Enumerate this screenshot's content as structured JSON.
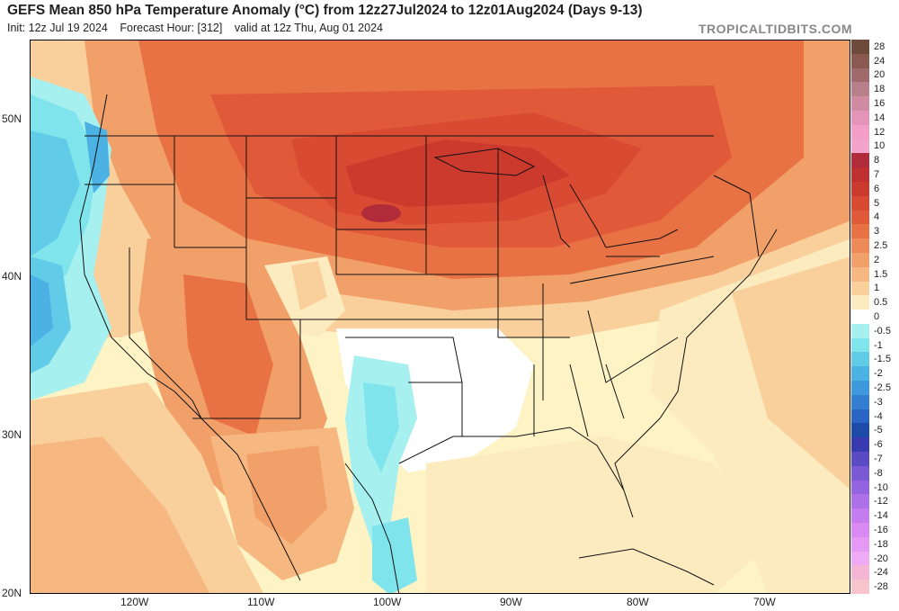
{
  "header": {
    "title": "GEFS Mean 850 hPa Temperature Anomaly (°C) from 12z27Jul2024 to 12z01Aug2024 (Days 9-13)",
    "init": "Init: 12z Jul 19 2024",
    "forecast_hour": "Forecast Hour: [312]",
    "valid": "valid at 12z Thu, Aug 01 2024",
    "brand": "TROPICALTIDBITS.COM"
  },
  "axes": {
    "lat_labels": [
      "50N",
      "40N",
      "30N",
      "20N"
    ],
    "lon_labels": [
      "120W",
      "110W",
      "100W",
      "90W",
      "80W",
      "70W"
    ]
  },
  "colorbar": {
    "levels": [
      {
        "label": "28",
        "color": "#6e4a3a"
      },
      {
        "label": "24",
        "color": "#8a5a52"
      },
      {
        "label": "20",
        "color": "#a06a6a"
      },
      {
        "label": "18",
        "color": "#b8808a"
      },
      {
        "label": "16",
        "color": "#d08aa2"
      },
      {
        "label": "14",
        "color": "#e494b8"
      },
      {
        "label": "12",
        "color": "#f29ec8"
      },
      {
        "label": "10",
        "color": "#f2a4cc"
      },
      {
        "label": "8",
        "color": "#b02c3a"
      },
      {
        "label": "7",
        "color": "#c03030"
      },
      {
        "label": "6",
        "color": "#cc3a2e"
      },
      {
        "label": "5",
        "color": "#d84a32"
      },
      {
        "label": "4",
        "color": "#e05a3a"
      },
      {
        "label": "3",
        "color": "#e87244"
      },
      {
        "label": "2.5",
        "color": "#ee8a58"
      },
      {
        "label": "2",
        "color": "#f2a06a"
      },
      {
        "label": "1.5",
        "color": "#f6b880"
      },
      {
        "label": "1",
        "color": "#f9d09c"
      },
      {
        "label": "0.5",
        "color": "#fcebbe"
      },
      {
        "label": "0",
        "color": "#ffffff"
      },
      {
        "label": "-0.5",
        "color": "#a6f0f0"
      },
      {
        "label": "-1",
        "color": "#80e4ec"
      },
      {
        "label": "-1.5",
        "color": "#62cce8"
      },
      {
        "label": "-2",
        "color": "#4cb2e4"
      },
      {
        "label": "-2.5",
        "color": "#3e98dc"
      },
      {
        "label": "-3",
        "color": "#347ed2"
      },
      {
        "label": "-4",
        "color": "#2a64c4"
      },
      {
        "label": "-5",
        "color": "#1e4aa8"
      },
      {
        "label": "-6",
        "color": "#3a3ab0"
      },
      {
        "label": "-7",
        "color": "#5a4ac4"
      },
      {
        "label": "-8",
        "color": "#7a5ad4"
      },
      {
        "label": "-10",
        "color": "#9464e0"
      },
      {
        "label": "-12",
        "color": "#ae70e8"
      },
      {
        "label": "-14",
        "color": "#c47cee"
      },
      {
        "label": "-16",
        "color": "#d88af2"
      },
      {
        "label": "-18",
        "color": "#e49af4"
      },
      {
        "label": "-20",
        "color": "#eeaaf4"
      },
      {
        "label": "-24",
        "color": "#f4b6d4"
      },
      {
        "label": "-28",
        "color": "#f8c4cc"
      }
    ]
  }
}
